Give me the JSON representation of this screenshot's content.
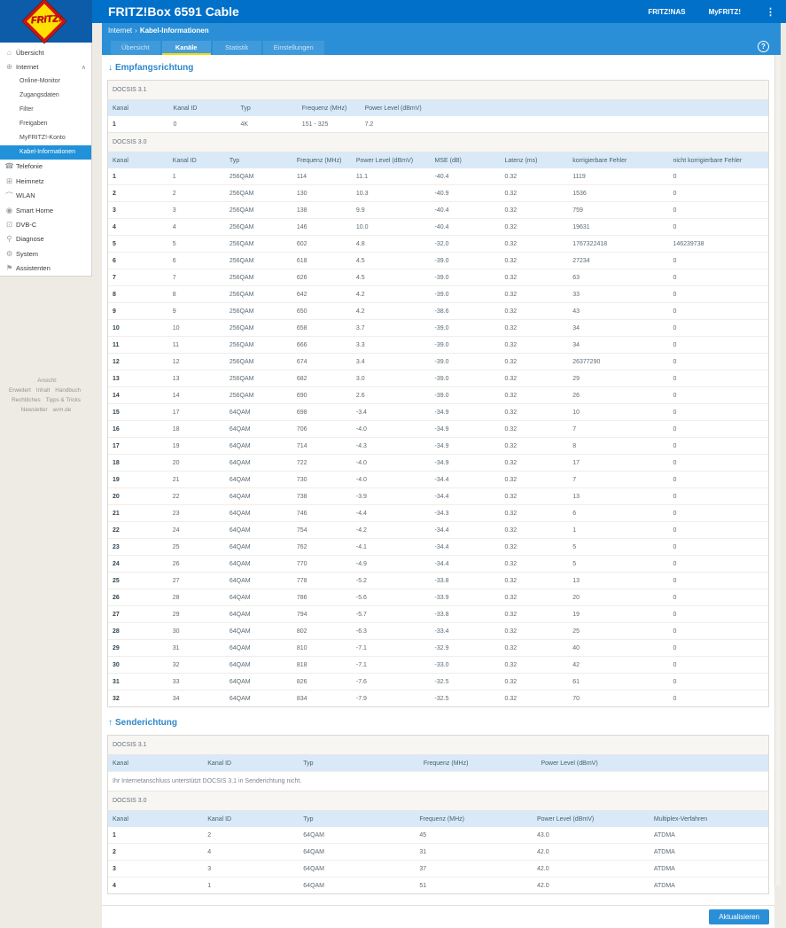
{
  "header": {
    "title": "FRITZ!Box 6591 Cable",
    "links": [
      "FRITZ!NAS",
      "MyFRITZ!"
    ],
    "menu_icon": "⋮",
    "help_icon": "?",
    "logo_text": "FRITZ!",
    "colors": {
      "topbar": "#0070c8",
      "subbar": "#2a8fd7",
      "accent_yellow": "#f5dc00",
      "active_item": "#2192d9"
    }
  },
  "breadcrumb": {
    "section": "Internet",
    "separator": "›",
    "page": "Kabel-Informationen"
  },
  "tabs": [
    {
      "label": "Übersicht",
      "active": false
    },
    {
      "label": "Kanäle",
      "active": true
    },
    {
      "label": "Statistik",
      "active": false
    },
    {
      "label": "Einstellungen",
      "active": false
    }
  ],
  "sidebar": {
    "items": [
      {
        "label": "Übersicht",
        "icon": "home-icon",
        "type": "top"
      },
      {
        "label": "Internet",
        "icon": "globe-icon",
        "type": "top",
        "chevron": "∧"
      },
      {
        "label": "Online-Monitor",
        "type": "sub"
      },
      {
        "label": "Zugangsdaten",
        "type": "sub"
      },
      {
        "label": "Filter",
        "type": "sub"
      },
      {
        "label": "Freigaben",
        "type": "sub"
      },
      {
        "label": "MyFRITZ!-Konto",
        "type": "sub"
      },
      {
        "label": "Kabel-Informationen",
        "type": "sub",
        "active": true
      },
      {
        "label": "Telefonie",
        "icon": "phone-icon",
        "type": "top"
      },
      {
        "label": "Heimnetz",
        "icon": "network-icon",
        "type": "top"
      },
      {
        "label": "WLAN",
        "icon": "wifi-icon",
        "type": "top"
      },
      {
        "label": "Smart Home",
        "icon": "smarthome-icon",
        "type": "top"
      },
      {
        "label": "DVB-C",
        "icon": "tv-icon",
        "type": "top"
      },
      {
        "label": "Diagnose",
        "icon": "magnifier-icon",
        "type": "top"
      },
      {
        "label": "System",
        "icon": "gear-icon",
        "type": "top"
      },
      {
        "label": "Assistenten",
        "icon": "assistant-icon",
        "type": "top"
      }
    ],
    "footer_lines": [
      [
        "Ansicht: Erweitert",
        "Inhalt",
        "Handbuch"
      ],
      [
        "Rechtliches",
        "Tipps & Tricks"
      ],
      [
        "Newsletter",
        "avm.de"
      ]
    ]
  },
  "downstream": {
    "arrow": "↓",
    "title": "Empfangsrichtung",
    "docsis31": {
      "section": "DOCSIS 3.1",
      "headers": [
        "Kanal",
        "Kanal ID",
        "Typ",
        "Frequenz (MHz)",
        "Power Level (dBmV)"
      ],
      "rows": [
        [
          "1",
          "0",
          "4K",
          "151 - 325",
          "7.2"
        ]
      ]
    },
    "docsis30": {
      "section": "DOCSIS 3.0",
      "headers": [
        "Kanal",
        "Kanal ID",
        "Typ",
        "Frequenz (MHz)",
        "Power Level (dBmV)",
        "MSE (dB)",
        "Latenz (ms)",
        "korrigierbare Fehler",
        "nicht korrigierbare Fehler"
      ],
      "rows": [
        [
          "1",
          "1",
          "256QAM",
          "114",
          "11.1",
          "-40.4",
          "0.32",
          "1119",
          "0"
        ],
        [
          "2",
          "2",
          "256QAM",
          "130",
          "10.3",
          "-40.9",
          "0.32",
          "1536",
          "0"
        ],
        [
          "3",
          "3",
          "256QAM",
          "138",
          "9.9",
          "-40.4",
          "0.32",
          "759",
          "0"
        ],
        [
          "4",
          "4",
          "256QAM",
          "146",
          "10.0",
          "-40.4",
          "0.32",
          "19631",
          "0"
        ],
        [
          "5",
          "5",
          "256QAM",
          "602",
          "4.8",
          "-32.0",
          "0.32",
          "1767322418",
          "146239738"
        ],
        [
          "6",
          "6",
          "256QAM",
          "618",
          "4.5",
          "-39.0",
          "0.32",
          "27234",
          "0"
        ],
        [
          "7",
          "7",
          "256QAM",
          "626",
          "4.5",
          "-39.0",
          "0.32",
          "63",
          "0"
        ],
        [
          "8",
          "8",
          "256QAM",
          "642",
          "4.2",
          "-39.0",
          "0.32",
          "33",
          "0"
        ],
        [
          "9",
          "9",
          "256QAM",
          "650",
          "4.2",
          "-38.6",
          "0.32",
          "43",
          "0"
        ],
        [
          "10",
          "10",
          "256QAM",
          "658",
          "3.7",
          "-39.0",
          "0.32",
          "34",
          "0"
        ],
        [
          "11",
          "11",
          "256QAM",
          "666",
          "3.3",
          "-39.0",
          "0.32",
          "34",
          "0"
        ],
        [
          "12",
          "12",
          "256QAM",
          "674",
          "3.4",
          "-39.0",
          "0.32",
          "26377290",
          "0"
        ],
        [
          "13",
          "13",
          "256QAM",
          "682",
          "3.0",
          "-39.0",
          "0.32",
          "29",
          "0"
        ],
        [
          "14",
          "14",
          "256QAM",
          "690",
          "2.6",
          "-39.0",
          "0.32",
          "26",
          "0"
        ],
        [
          "15",
          "17",
          "64QAM",
          "698",
          "-3.4",
          "-34.9",
          "0.32",
          "10",
          "0"
        ],
        [
          "16",
          "18",
          "64QAM",
          "706",
          "-4.0",
          "-34.9",
          "0.32",
          "7",
          "0"
        ],
        [
          "17",
          "19",
          "64QAM",
          "714",
          "-4.3",
          "-34.9",
          "0.32",
          "8",
          "0"
        ],
        [
          "18",
          "20",
          "64QAM",
          "722",
          "-4.0",
          "-34.9",
          "0.32",
          "17",
          "0"
        ],
        [
          "19",
          "21",
          "64QAM",
          "730",
          "-4.0",
          "-34.4",
          "0.32",
          "7",
          "0"
        ],
        [
          "20",
          "22",
          "64QAM",
          "738",
          "-3.9",
          "-34.4",
          "0.32",
          "13",
          "0"
        ],
        [
          "21",
          "23",
          "64QAM",
          "746",
          "-4.4",
          "-34.3",
          "0.32",
          "6",
          "0"
        ],
        [
          "22",
          "24",
          "64QAM",
          "754",
          "-4.2",
          "-34.4",
          "0.32",
          "1",
          "0"
        ],
        [
          "23",
          "25",
          "64QAM",
          "762",
          "-4.1",
          "-34.4",
          "0.32",
          "5",
          "0"
        ],
        [
          "24",
          "26",
          "64QAM",
          "770",
          "-4.9",
          "-34.4",
          "0.32",
          "5",
          "0"
        ],
        [
          "25",
          "27",
          "64QAM",
          "778",
          "-5.2",
          "-33.8",
          "0.32",
          "13",
          "0"
        ],
        [
          "26",
          "28",
          "64QAM",
          "786",
          "-5.6",
          "-33.9",
          "0.32",
          "20",
          "0"
        ],
        [
          "27",
          "29",
          "64QAM",
          "794",
          "-5.7",
          "-33.8",
          "0.32",
          "19",
          "0"
        ],
        [
          "28",
          "30",
          "64QAM",
          "802",
          "-6.3",
          "-33.4",
          "0.32",
          "25",
          "0"
        ],
        [
          "29",
          "31",
          "64QAM",
          "810",
          "-7.1",
          "-32.9",
          "0.32",
          "40",
          "0"
        ],
        [
          "30",
          "32",
          "64QAM",
          "818",
          "-7.1",
          "-33.0",
          "0.32",
          "42",
          "0"
        ],
        [
          "31",
          "33",
          "64QAM",
          "826",
          "-7.6",
          "-32.5",
          "0.32",
          "61",
          "0"
        ],
        [
          "32",
          "34",
          "64QAM",
          "834",
          "-7.9",
          "-32.5",
          "0.32",
          "70",
          "0"
        ]
      ]
    }
  },
  "upstream": {
    "arrow": "↑",
    "title": "Senderichtung",
    "docsis31": {
      "section": "DOCSIS 3.1",
      "headers": [
        "Kanal",
        "Kanal ID",
        "Typ",
        "Frequenz (MHz)",
        "Power Level (dBmV)"
      ],
      "note": "Ihr Internetanschluss unterstützt DOCSIS 3.1 in Senderichtung nicht."
    },
    "docsis30": {
      "section": "DOCSIS 3.0",
      "headers": [
        "Kanal",
        "Kanal ID",
        "Typ",
        "Frequenz (MHz)",
        "Power Level (dBmV)",
        "Multiplex-Verfahren"
      ],
      "rows": [
        [
          "1",
          "2",
          "64QAM",
          "45",
          "43.0",
          "ATDMA"
        ],
        [
          "2",
          "4",
          "64QAM",
          "31",
          "42.0",
          "ATDMA"
        ],
        [
          "3",
          "3",
          "64QAM",
          "37",
          "42.0",
          "ATDMA"
        ],
        [
          "4",
          "1",
          "64QAM",
          "51",
          "42.0",
          "ATDMA"
        ]
      ]
    }
  },
  "refresh_button": "Aktualisieren"
}
